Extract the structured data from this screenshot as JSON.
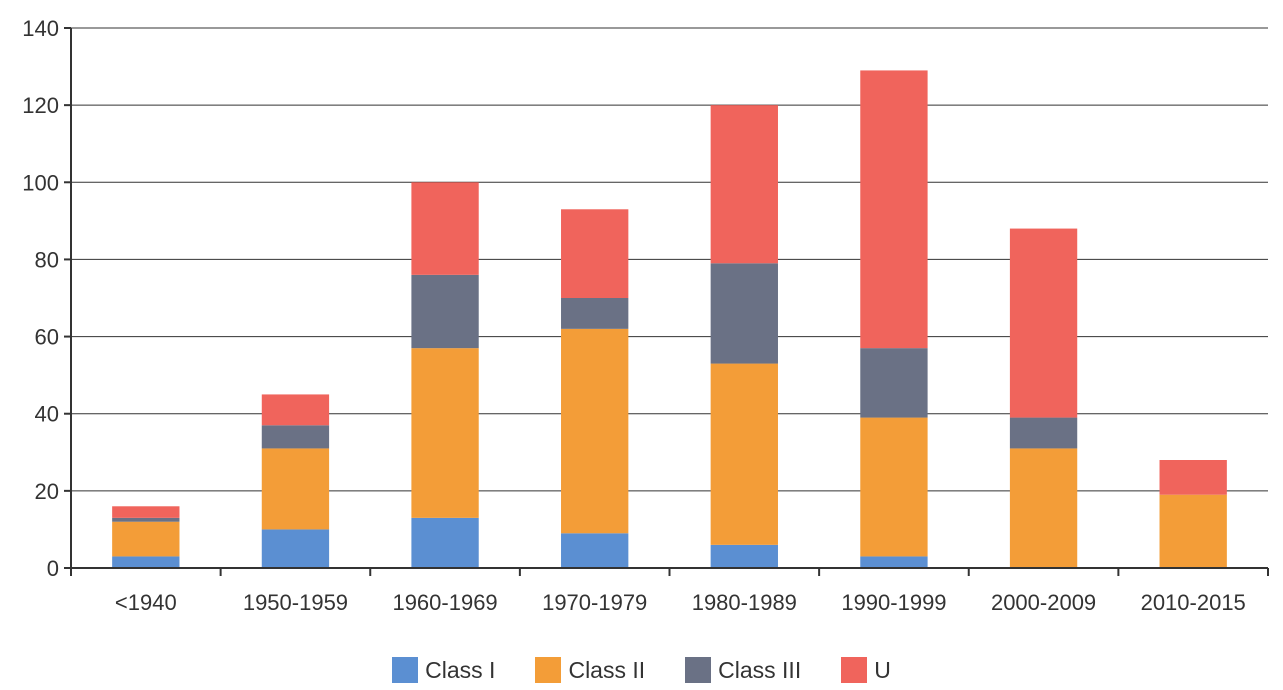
{
  "chart_data": {
    "type": "bar",
    "stacked": true,
    "title": "",
    "xlabel": "",
    "ylabel": "",
    "ylim": [
      0,
      140
    ],
    "yticks": [
      0,
      20,
      40,
      60,
      80,
      100,
      120,
      140
    ],
    "grid": true,
    "legend_position": "bottom",
    "categories": [
      "<1940",
      "1950-1959",
      "1960-1969",
      "1970-1979",
      "1980-1989",
      "1990-1999",
      "2000-2009",
      "2010-2015"
    ],
    "series": [
      {
        "name": "Class I",
        "color": "#5b8fd2",
        "values": [
          3,
          10,
          13,
          9,
          6,
          3,
          0,
          0
        ]
      },
      {
        "name": "Class II",
        "color": "#f39d38",
        "values": [
          9,
          21,
          44,
          53,
          47,
          36,
          31,
          19
        ]
      },
      {
        "name": "Class III",
        "color": "#6a7185",
        "values": [
          1,
          6,
          19,
          8,
          26,
          18,
          8,
          0
        ]
      },
      {
        "name": "U",
        "color": "#f0645c",
        "values": [
          3,
          8,
          24,
          23,
          41,
          72,
          49,
          9
        ]
      }
    ]
  }
}
